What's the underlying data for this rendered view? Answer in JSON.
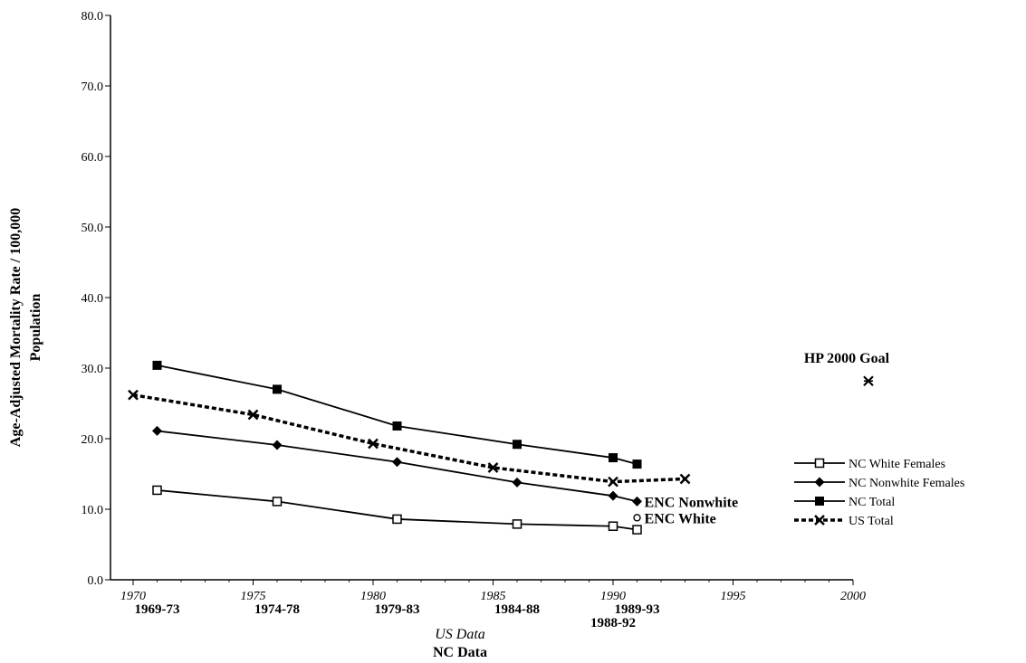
{
  "chart_data": {
    "type": "line",
    "title": "",
    "ylabel": [
      "Age-Adjusted Mortality Rate / 100,000",
      "Population"
    ],
    "xlabel_us": "US Data",
    "xlabel_nc": "NC Data",
    "ylim": [
      0,
      80
    ],
    "xlim": [
      1970,
      2000
    ],
    "y_ticks": [
      "0.0",
      "10.0",
      "20.0",
      "30.0",
      "40.0",
      "50.0",
      "60.0",
      "70.0",
      "80.0"
    ],
    "x_ticks": [
      "1970",
      "1975",
      "1980",
      "1985",
      "1990",
      "1995",
      "2000"
    ],
    "nc_periods": [
      {
        "label": "1969-73",
        "x": 1971
      },
      {
        "label": "1974-78",
        "x": 1976
      },
      {
        "label": "1979-83",
        "x": 1981
      },
      {
        "label": "1984-88",
        "x": 1986
      },
      {
        "label": "1989-93",
        "x": 1991
      },
      {
        "label": "1988-92",
        "x": 1990
      }
    ],
    "series": [
      {
        "name": "NC White Females",
        "marker": "square-open",
        "dash": false,
        "color": "#000000",
        "x": [
          1971,
          1976,
          1981,
          1986,
          1990,
          1991
        ],
        "values": [
          12.7,
          11.1,
          8.6,
          7.9,
          7.6,
          7.1
        ]
      },
      {
        "name": "NC Nonwhite Females",
        "marker": "diamond",
        "dash": false,
        "color": "#000000",
        "x": [
          1971,
          1976,
          1981,
          1986,
          1990,
          1991
        ],
        "values": [
          21.1,
          19.1,
          16.7,
          13.8,
          11.9,
          11.1
        ]
      },
      {
        "name": "NC Total",
        "marker": "square-filled",
        "dash": false,
        "color": "#000000",
        "x": [
          1971,
          1976,
          1981,
          1986,
          1990,
          1991
        ],
        "values": [
          30.4,
          27.0,
          21.8,
          19.2,
          17.3,
          16.4
        ]
      },
      {
        "name": "US Total",
        "marker": "x",
        "dash": true,
        "color": "#000000",
        "x": [
          1970,
          1975,
          1980,
          1985,
          1990,
          1993
        ],
        "values": [
          26.2,
          23.4,
          19.3,
          15.9,
          13.9,
          14.3
        ]
      }
    ],
    "points": [
      {
        "label": "ENC Nonwhite",
        "x": 1991,
        "y": 11.1
      },
      {
        "label": "ENC White",
        "x": 1991,
        "y": 8.8,
        "marker": "circle-open"
      },
      {
        "label": "HP 2000 Goal",
        "x": 2000.3,
        "y": 29.2,
        "marker": "star"
      }
    ],
    "legend_position": "right",
    "grid": false
  }
}
